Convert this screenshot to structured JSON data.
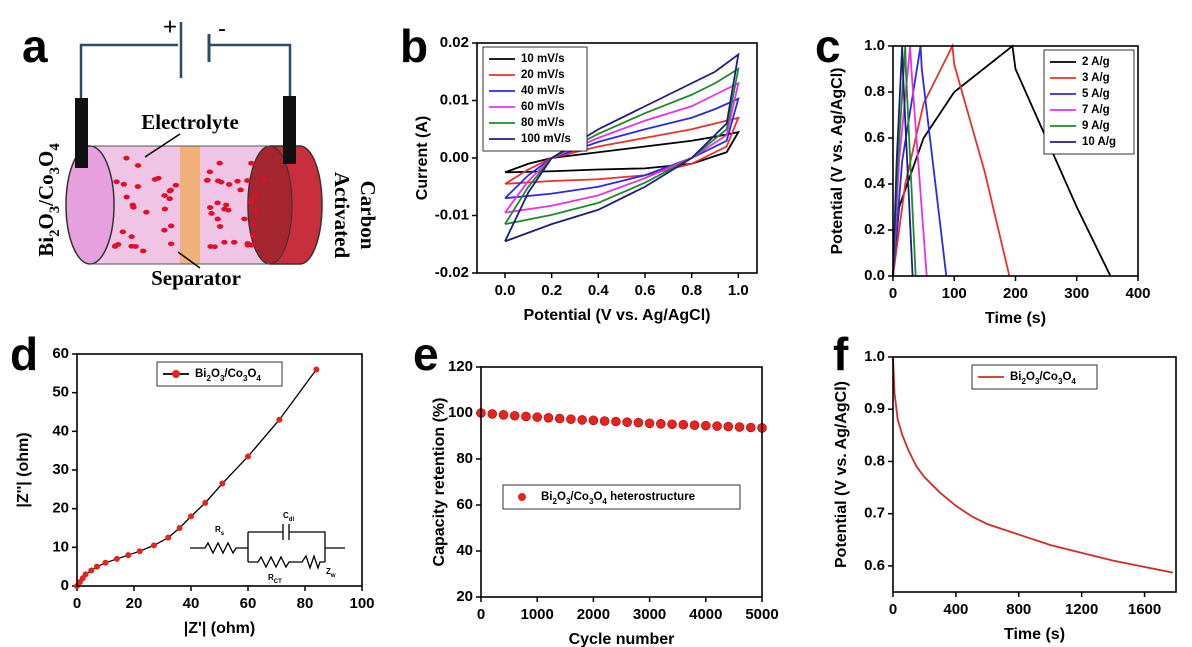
{
  "chart_data": [
    {
      "type": "diagram",
      "panel_label": "a",
      "labels": {
        "plus": "+",
        "minus": "-",
        "electrolyte": "Electrolyte",
        "separator": "Separator",
        "anode": "Bi2O3/Co3O4",
        "cathode": [
          "Activated",
          "Carbon"
        ]
      }
    },
    {
      "type": "line",
      "panel_label": "b",
      "x_label": "Potential (V vs. Ag/AgCl)",
      "y_label": "Current (A)",
      "xlim": [
        -0.12,
        1.08
      ],
      "ylim": [
        -0.02,
        0.02
      ],
      "xticks": [
        {
          "value": 0,
          "label": "0.0"
        },
        0.2,
        0.4,
        0.6,
        0.8,
        {
          "value": 1,
          "label": "1.0"
        }
      ],
      "yticks": [
        -0.02,
        -0.01,
        {
          "value": 0,
          "label": "0.00"
        },
        0.01,
        0.02
      ],
      "legend": "upper left",
      "x": [
        0,
        0.1,
        0.2,
        0.4,
        0.6,
        0.8,
        0.9,
        1.0,
        0.95,
        0.8,
        0.6,
        0.4,
        0.2,
        0
      ],
      "series": [
        {
          "name": "10 mV/s",
          "color": "#000000",
          "values": [
            -0.0025,
            -0.001,
            0,
            0.001,
            0.002,
            0.003,
            0.0037,
            0.0045,
            0.001,
            -0.001,
            -0.0018,
            -0.002,
            -0.0023,
            -0.0025
          ]
        },
        {
          "name": "20 mV/s",
          "color": "#e8322a",
          "values": [
            -0.0045,
            -0.002,
            0,
            0.002,
            0.0035,
            0.005,
            0.006,
            0.007,
            0.002,
            -0.001,
            -0.003,
            -0.0037,
            -0.004,
            -0.0045
          ]
        },
        {
          "name": "40 mV/s",
          "color": "#2a2ae8",
          "values": [
            -0.007,
            -0.003,
            0,
            0.0028,
            0.005,
            0.007,
            0.0085,
            0.0103,
            0.003,
            0,
            -0.003,
            -0.005,
            -0.0062,
            -0.007
          ]
        },
        {
          "name": "60 mV/s",
          "color": "#e830e8",
          "values": [
            -0.0095,
            -0.004,
            0,
            0.0035,
            0.0065,
            0.009,
            0.011,
            0.013,
            0.004,
            0,
            -0.0035,
            -0.0065,
            -0.0083,
            -0.0095
          ]
        },
        {
          "name": "80 mV/s",
          "color": "#1f8a2a",
          "values": [
            -0.0115,
            -0.005,
            0,
            0.0042,
            0.0078,
            0.011,
            0.013,
            0.0155,
            0.005,
            0,
            -0.0043,
            -0.0078,
            -0.0099,
            -0.0115
          ]
        },
        {
          "name": "100 mV/s",
          "color": "#1f1f7a",
          "values": [
            -0.0145,
            -0.006,
            0,
            0.005,
            0.009,
            0.013,
            0.015,
            0.018,
            0.006,
            0,
            -0.005,
            -0.009,
            -0.0115,
            -0.0145
          ]
        }
      ]
    },
    {
      "type": "line",
      "panel_label": "c",
      "x_label": "Time (s)",
      "y_label": "Potential (V vs. Ag/AgCl)",
      "xlim": [
        0,
        400
      ],
      "ylim": [
        0,
        1
      ],
      "xticks": [
        0,
        100,
        200,
        300,
        400
      ],
      "yticks": [
        {
          "value": 0,
          "label": "0.0"
        },
        0.2,
        0.4,
        0.6,
        0.8,
        {
          "value": 1,
          "label": "1.0"
        }
      ],
      "legend": "upper right",
      "series": [
        {
          "name": "2 A/g",
          "color": "#000000",
          "x": [
            0,
            10,
            50,
            100,
            195,
            200,
            250,
            300,
            355
          ],
          "values": [
            0,
            0.3,
            0.6,
            0.8,
            1.0,
            0.9,
            0.6,
            0.3,
            0
          ]
        },
        {
          "name": "3 A/g",
          "color": "#e8322a",
          "x": [
            0,
            20,
            50,
            97,
            100,
            150,
            190
          ],
          "values": [
            0,
            0.4,
            0.75,
            1.0,
            0.92,
            0.45,
            0
          ]
        },
        {
          "name": "5 A/g",
          "color": "#2a2ae8",
          "x": [
            0,
            15,
            45,
            47,
            87
          ],
          "values": [
            0,
            0.5,
            1.0,
            0.9,
            0
          ]
        },
        {
          "name": "7 A/g",
          "color": "#e830e8",
          "x": [
            0,
            10,
            28,
            30,
            55
          ],
          "values": [
            0,
            0.5,
            1.0,
            0.9,
            0
          ]
        },
        {
          "name": "9 A/g",
          "color": "#1f8a2a",
          "x": [
            0,
            8,
            20,
            21,
            37
          ],
          "values": [
            0,
            0.5,
            1.0,
            0.9,
            0
          ]
        },
        {
          "name": "10 A/g",
          "color": "#1f1f7a",
          "x": [
            0,
            6,
            15,
            16,
            32
          ],
          "values": [
            0,
            0.5,
            1.0,
            0.9,
            0
          ]
        }
      ]
    },
    {
      "type": "scatter",
      "panel_label": "d",
      "x_label": "|Z'| (ohm)",
      "y_label": "|Z''| (ohm)",
      "xlim": [
        0,
        100
      ],
      "ylim": [
        0,
        60
      ],
      "xticks": [
        0,
        20,
        40,
        60,
        80,
        100
      ],
      "yticks": [
        0,
        10,
        20,
        30,
        40,
        50,
        60
      ],
      "legend": "upper center",
      "connect": true,
      "inset_labels": [
        {
          "text": "R",
          "sub": "s"
        },
        {
          "text": "C",
          "sub": "dl"
        },
        {
          "text": "R",
          "sub": "CT"
        },
        {
          "text": "Z",
          "sub": "w"
        }
      ],
      "series": [
        {
          "name": "Bi2O3/Co3O4",
          "color": "#e8221c",
          "x": [
            0,
            1,
            2,
            3,
            5,
            7,
            10,
            14,
            18,
            22,
            27,
            32,
            36,
            40,
            45,
            51,
            60,
            71,
            84
          ],
          "values": [
            0,
            1,
            2,
            3,
            4,
            5,
            6,
            7,
            8,
            9,
            10.5,
            12.5,
            15,
            18,
            21.5,
            26.5,
            33.5,
            43,
            56
          ]
        }
      ]
    },
    {
      "type": "scatter",
      "panel_label": "e",
      "x_label": "Cycle number",
      "y_label": "Capacity retention (%)",
      "xlim": [
        0,
        5000
      ],
      "ylim": [
        20,
        120
      ],
      "xticks": [
        0,
        1000,
        2000,
        3000,
        4000,
        5000
      ],
      "yticks": [
        20,
        40,
        60,
        80,
        100,
        120
      ],
      "legend": "center",
      "connect": false,
      "series": [
        {
          "name": "Bi2O3/Co3O4 heterostructure",
          "color": "#e8221c",
          "x": [
            0,
            200,
            400,
            600,
            800,
            1000,
            1200,
            1400,
            1600,
            1800,
            2000,
            2200,
            2400,
            2600,
            2800,
            3000,
            3200,
            3400,
            3600,
            3800,
            4000,
            4200,
            4400,
            4600,
            4800,
            5000
          ],
          "values": [
            100,
            99.6,
            99.2,
            98.8,
            98.5,
            98.2,
            97.9,
            97.6,
            97.3,
            97.0,
            96.8,
            96.5,
            96.3,
            96.0,
            95.8,
            95.5,
            95.3,
            95.1,
            94.9,
            94.7,
            94.5,
            94.3,
            94.1,
            93.9,
            93.7,
            93.5
          ]
        }
      ]
    },
    {
      "type": "line",
      "panel_label": "f",
      "x_label": "Time (s)",
      "y_label": "Potential (V vs. Ag/AgCl)",
      "xlim": [
        0,
        1800
      ],
      "ylim": [
        0.55,
        1.0
      ],
      "xticks": [
        0,
        400,
        800,
        1200,
        1600
      ],
      "yticks": [
        0.6,
        0.7,
        0.8,
        0.9,
        {
          "value": 1,
          "label": "1.0"
        }
      ],
      "legend": "upper center",
      "series": [
        {
          "name": "Bi2O3/Co3O4",
          "color": "#d42a2a",
          "x": [
            0,
            10,
            30,
            60,
            100,
            150,
            200,
            300,
            400,
            500,
            600,
            800,
            1000,
            1200,
            1400,
            1600,
            1780
          ],
          "values": [
            1.0,
            0.93,
            0.88,
            0.85,
            0.82,
            0.79,
            0.77,
            0.74,
            0.715,
            0.695,
            0.68,
            0.66,
            0.64,
            0.625,
            0.61,
            0.598,
            0.587
          ]
        }
      ]
    }
  ]
}
